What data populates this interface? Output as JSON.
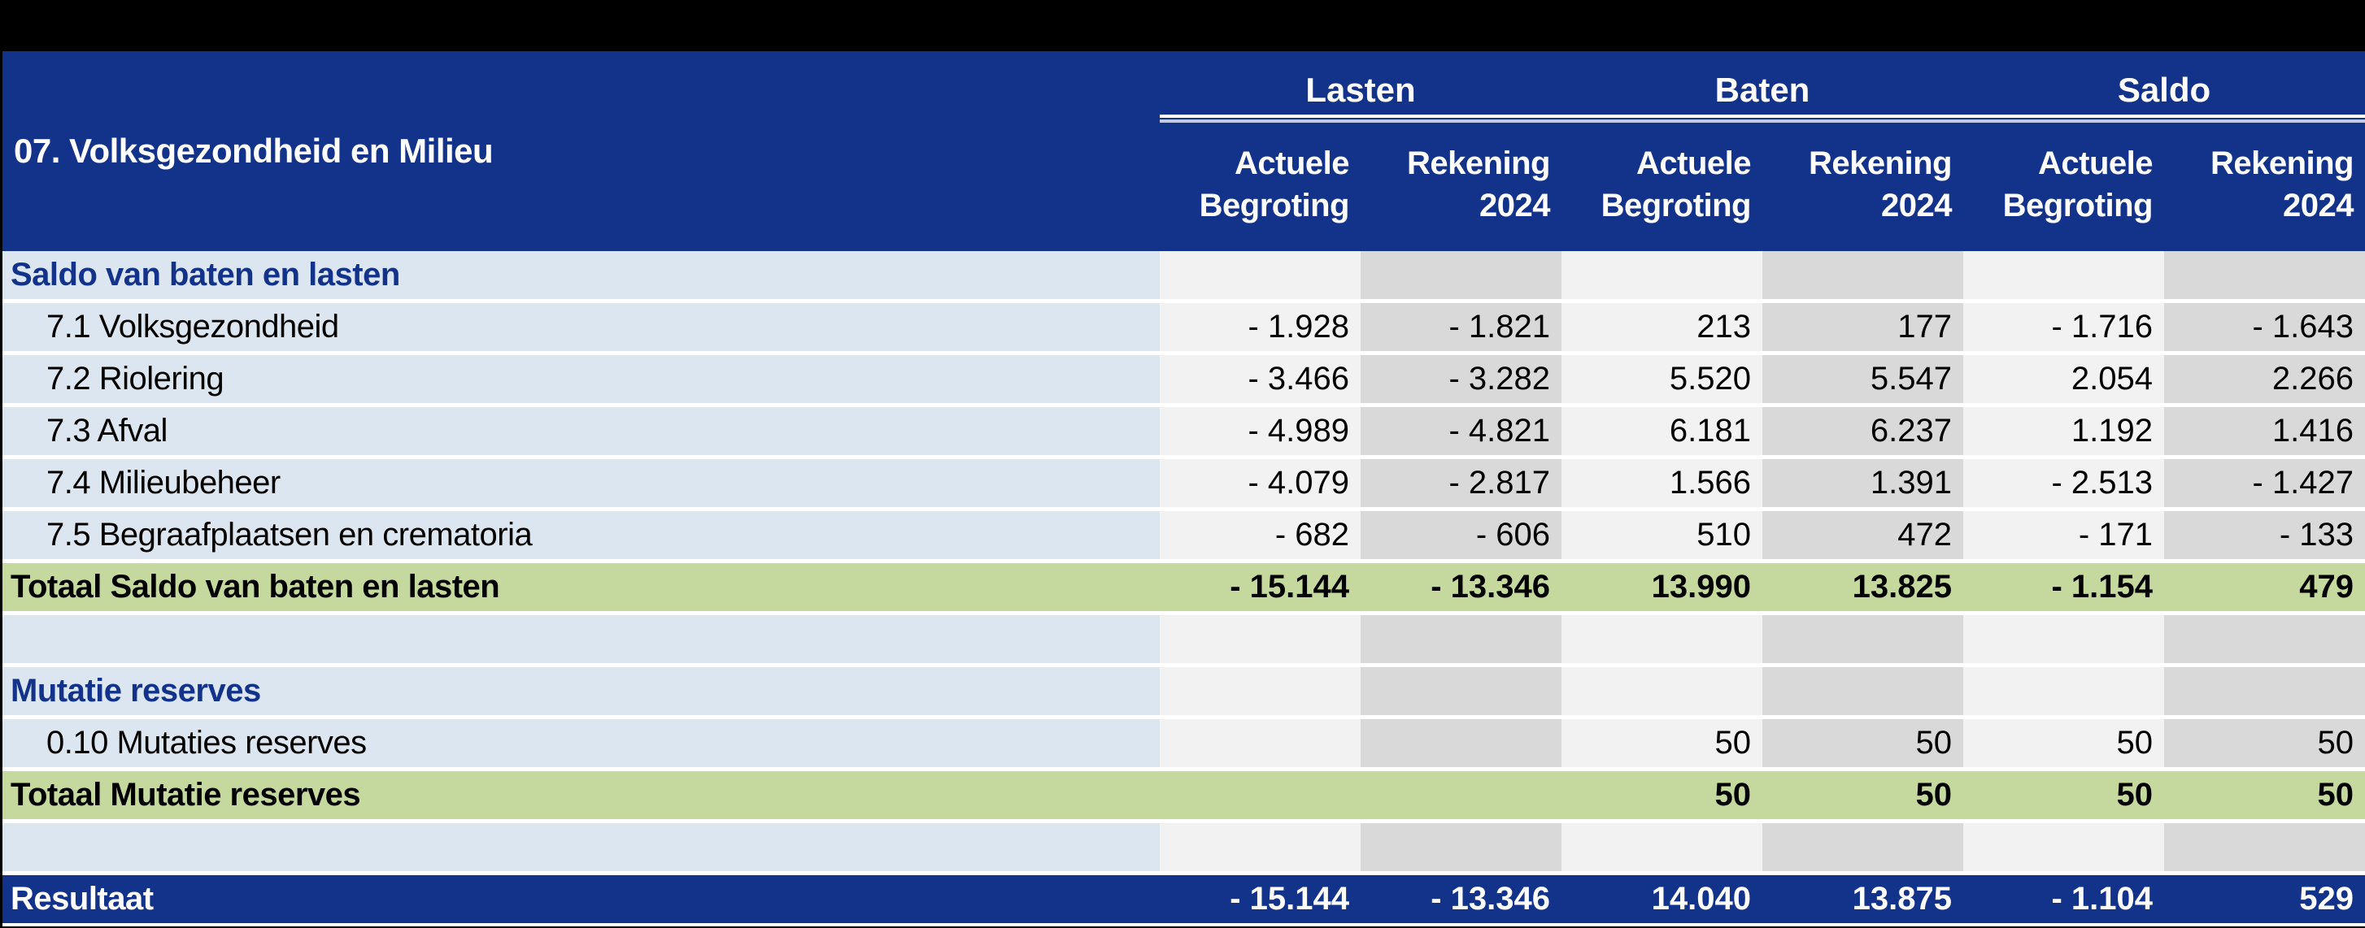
{
  "title": "07. Volksgezondheid en Milieu",
  "columns": {
    "groups": [
      {
        "label": "Lasten"
      },
      {
        "label": "Baten"
      },
      {
        "label": "Saldo"
      }
    ],
    "subheaders": [
      {
        "line1": "Actuele",
        "line2": "Begroting"
      },
      {
        "line1": "Rekening",
        "line2": "2024"
      },
      {
        "line1": "Actuele",
        "line2": "Begroting"
      },
      {
        "line1": "Rekening",
        "line2": "2024"
      },
      {
        "line1": "Actuele",
        "line2": "Begroting"
      },
      {
        "line1": "Rekening",
        "line2": "2024"
      }
    ]
  },
  "rows": [
    {
      "type": "section",
      "label": "Saldo van baten en lasten",
      "values": [
        "",
        "",
        "",
        "",
        "",
        ""
      ]
    },
    {
      "type": "data",
      "label": "7.1 Volksgezondheid",
      "values": [
        "- 1.928",
        "- 1.821",
        "213",
        "177",
        "- 1.716",
        "- 1.643"
      ]
    },
    {
      "type": "data",
      "label": "7.2 Riolering",
      "values": [
        "- 3.466",
        "- 3.282",
        "5.520",
        "5.547",
        "2.054",
        "2.266"
      ]
    },
    {
      "type": "data",
      "label": "7.3 Afval",
      "values": [
        "- 4.989",
        "- 4.821",
        "6.181",
        "6.237",
        "1.192",
        "1.416"
      ]
    },
    {
      "type": "data",
      "label": "7.4 Milieubeheer",
      "values": [
        "- 4.079",
        "- 2.817",
        "1.566",
        "1.391",
        "- 2.513",
        "- 1.427"
      ]
    },
    {
      "type": "data",
      "label": "7.5 Begraafplaatsen en crematoria",
      "values": [
        "- 682",
        "- 606",
        "510",
        "472",
        "- 171",
        "- 133"
      ]
    },
    {
      "type": "total",
      "label": "Totaal Saldo van baten en lasten",
      "values": [
        "- 15.144",
        "- 13.346",
        "13.990",
        "13.825",
        "- 1.154",
        "479"
      ]
    },
    {
      "type": "spacer",
      "label": "",
      "values": [
        "",
        "",
        "",
        "",
        "",
        ""
      ]
    },
    {
      "type": "section",
      "label": "Mutatie reserves",
      "values": [
        "",
        "",
        "",
        "",
        "",
        ""
      ]
    },
    {
      "type": "data",
      "label": "0.10 Mutaties reserves",
      "values": [
        "",
        "",
        "50",
        "50",
        "50",
        "50"
      ]
    },
    {
      "type": "total",
      "label": "Totaal Mutatie reserves",
      "values": [
        "",
        "",
        "50",
        "50",
        "50",
        "50"
      ]
    },
    {
      "type": "spacer",
      "label": "",
      "values": [
        "",
        "",
        "",
        "",
        "",
        ""
      ]
    },
    {
      "type": "result",
      "label": "Resultaat",
      "values": [
        "- 15.144",
        "- 13.346",
        "14.040",
        "13.875",
        "- 1.104",
        "529"
      ]
    }
  ],
  "colors": {
    "header_background": "#13338A",
    "label_row_background": "#DCE6F0",
    "total_row_background": "#C5D89E",
    "result_row_background": "#13338A",
    "column_light": "#F2F2F2",
    "column_shaded": "#D9D9D9",
    "section_title_text": "#13338A",
    "page_background": "#000000"
  }
}
